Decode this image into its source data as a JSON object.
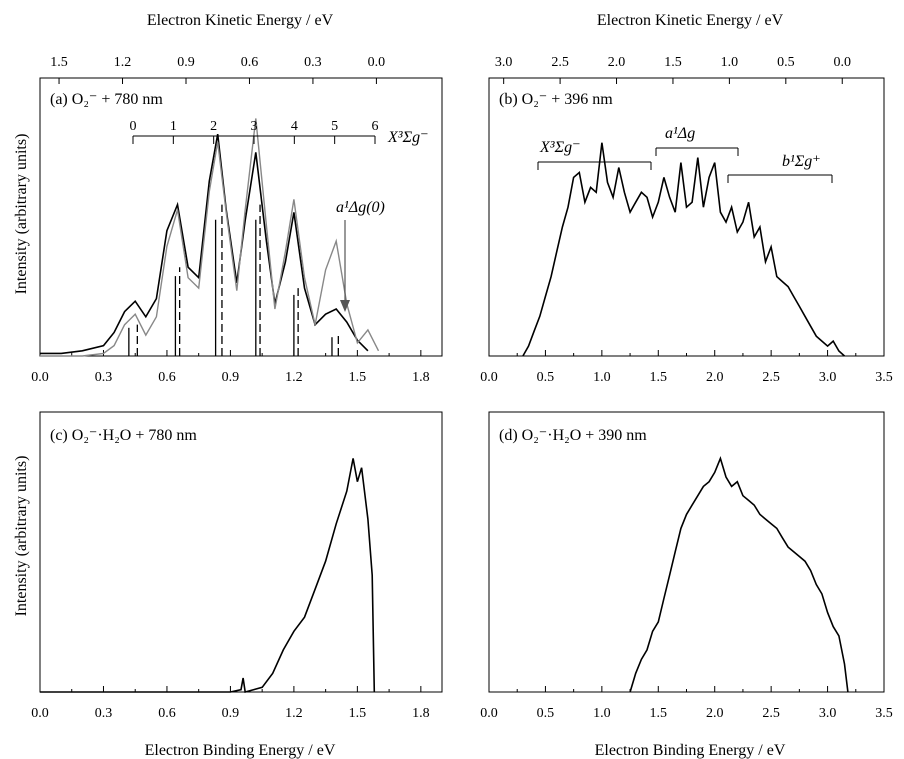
{
  "figure": {
    "top_axis_label": "Electron Kinetic Energy / eV",
    "bottom_axis_label": "Electron Binding Energy / eV",
    "y_axis_label": "Intensity (arbitrary units)"
  },
  "chart_data": [
    {
      "id": "a",
      "type": "line",
      "title": "(a)  O₂⁻ + 780 nm",
      "xlabel": "Electron Binding Energy / eV",
      "x2label": "Electron Kinetic Energy / eV",
      "ylabel": "Intensity (arbitrary units)",
      "xlim": [
        0.0,
        1.9
      ],
      "x_ticks": [
        "0.0",
        "0.3",
        "0.6",
        "0.9",
        "1.2",
        "1.5",
        "1.8"
      ],
      "x2_ticks": [
        "1.5",
        "1.2",
        "0.9",
        "0.6",
        "0.3",
        "0.0"
      ],
      "x2_tick_positions_ebe": [
        0.09,
        0.39,
        0.69,
        0.99,
        1.29,
        1.59
      ],
      "series": [
        {
          "name": "",
          "color": "#000000",
          "x": [
            0.0,
            0.1,
            0.2,
            0.3,
            0.35,
            0.4,
            0.45,
            0.5,
            0.55,
            0.6,
            0.65,
            0.7,
            0.75,
            0.8,
            0.84,
            0.88,
            0.93,
            0.97,
            1.02,
            1.07,
            1.11,
            1.16,
            1.2,
            1.25,
            1.3,
            1.35,
            1.4,
            1.45,
            1.5,
            1.55
          ],
          "y": [
            0.01,
            0.01,
            0.02,
            0.04,
            0.09,
            0.17,
            0.21,
            0.15,
            0.22,
            0.48,
            0.58,
            0.34,
            0.3,
            0.67,
            0.85,
            0.56,
            0.28,
            0.52,
            0.78,
            0.44,
            0.2,
            0.36,
            0.55,
            0.26,
            0.12,
            0.16,
            0.18,
            0.13,
            0.06,
            0.02
          ]
        },
        {
          "name": "",
          "color": "#888888",
          "x": [
            0.0,
            0.2,
            0.3,
            0.35,
            0.4,
            0.45,
            0.5,
            0.55,
            0.6,
            0.65,
            0.7,
            0.75,
            0.8,
            0.84,
            0.88,
            0.93,
            0.97,
            1.02,
            1.07,
            1.11,
            1.16,
            1.2,
            1.25,
            1.3,
            1.35,
            1.4,
            1.45,
            1.5,
            1.55,
            1.6
          ],
          "y": [
            0.0,
            0.0,
            0.01,
            0.04,
            0.12,
            0.16,
            0.08,
            0.15,
            0.42,
            0.56,
            0.3,
            0.26,
            0.63,
            0.82,
            0.55,
            0.25,
            0.56,
            0.91,
            0.5,
            0.18,
            0.4,
            0.6,
            0.3,
            0.12,
            0.33,
            0.44,
            0.2,
            0.05,
            0.1,
            0.02
          ]
        }
      ],
      "stick_spectrum": {
        "solid_x": [
          0.42,
          0.64,
          0.83,
          1.02,
          1.2,
          1.38
        ],
        "dashed_x": [
          0.46,
          0.66,
          0.86,
          1.04,
          1.22,
          1.41
        ]
      },
      "annotations": [
        {
          "state": "X³Σg⁻",
          "levels": [
            "0",
            "1",
            "2",
            "3",
            "4",
            "5",
            "6"
          ]
        },
        {
          "state": "a¹Δg(0)"
        }
      ]
    },
    {
      "id": "b",
      "type": "line",
      "title": "(b)  O₂⁻ + 396 nm",
      "xlabel": "Electron Binding Energy / eV",
      "x2label": "Electron Kinetic Energy / eV",
      "xlim": [
        0.0,
        3.5
      ],
      "x_ticks": [
        "0.0",
        "0.5",
        "1.0",
        "1.5",
        "2.0",
        "2.5",
        "3.0",
        "3.5"
      ],
      "x2_ticks": [
        "3.0",
        "2.5",
        "2.0",
        "1.5",
        "1.0",
        "0.5",
        "0.0"
      ],
      "x2_tick_positions_ebe": [
        0.13,
        0.63,
        1.13,
        1.63,
        2.13,
        2.63,
        3.13
      ],
      "series": [
        {
          "name": "",
          "color": "#000000",
          "x": [
            0.3,
            0.35,
            0.4,
            0.45,
            0.5,
            0.55,
            0.6,
            0.65,
            0.7,
            0.75,
            0.8,
            0.85,
            0.9,
            0.95,
            1.0,
            1.05,
            1.1,
            1.15,
            1.2,
            1.25,
            1.3,
            1.35,
            1.4,
            1.45,
            1.5,
            1.55,
            1.6,
            1.65,
            1.7,
            1.75,
            1.8,
            1.85,
            1.9,
            1.95,
            2.0,
            2.05,
            2.1,
            2.15,
            2.2,
            2.25,
            2.3,
            2.35,
            2.4,
            2.45,
            2.5,
            2.55,
            2.6,
            2.65,
            2.7,
            2.75,
            2.8,
            2.85,
            2.9,
            2.95,
            3.0,
            3.05,
            3.1,
            3.15
          ],
          "y": [
            0.0,
            0.04,
            0.1,
            0.16,
            0.24,
            0.32,
            0.42,
            0.52,
            0.6,
            0.72,
            0.74,
            0.62,
            0.68,
            0.66,
            0.86,
            0.7,
            0.64,
            0.76,
            0.66,
            0.58,
            0.62,
            0.66,
            0.64,
            0.56,
            0.62,
            0.72,
            0.64,
            0.58,
            0.78,
            0.6,
            0.62,
            0.8,
            0.6,
            0.72,
            0.78,
            0.58,
            0.54,
            0.6,
            0.5,
            0.54,
            0.62,
            0.48,
            0.52,
            0.38,
            0.44,
            0.32,
            0.3,
            0.28,
            0.24,
            0.2,
            0.16,
            0.12,
            0.08,
            0.06,
            0.04,
            0.06,
            0.02,
            0.0
          ]
        }
      ],
      "annotations": [
        {
          "state": "X³Σg⁻"
        },
        {
          "state": "a¹Δg"
        },
        {
          "state": "b¹Σg⁺"
        }
      ]
    },
    {
      "id": "c",
      "type": "line",
      "title": "(c)  O₂⁻·H₂O + 780 nm",
      "xlabel": "Electron Binding Energy / eV",
      "ylabel": "Intensity (arbitrary units)",
      "xlim": [
        0.0,
        1.9
      ],
      "x_ticks": [
        "0.0",
        "0.3",
        "0.6",
        "0.9",
        "1.2",
        "1.5",
        "1.8"
      ],
      "series": [
        {
          "name": "",
          "color": "#000000",
          "x": [
            0.0,
            0.5,
            0.9,
            0.95,
            0.96,
            0.97,
            1.05,
            1.1,
            1.15,
            1.2,
            1.25,
            1.3,
            1.35,
            1.4,
            1.45,
            1.48,
            1.5,
            1.52,
            1.55,
            1.57,
            1.58
          ],
          "y": [
            0.0,
            0.0,
            0.0,
            0.01,
            0.06,
            0.0,
            0.02,
            0.08,
            0.18,
            0.26,
            0.32,
            0.44,
            0.56,
            0.72,
            0.86,
            1.0,
            0.9,
            0.96,
            0.74,
            0.5,
            0.0
          ]
        }
      ]
    },
    {
      "id": "d",
      "type": "line",
      "title": "(d)  O₂⁻·H₂O + 390 nm",
      "xlabel": "Electron Binding Energy / eV",
      "xlim": [
        0.0,
        3.5
      ],
      "x_ticks": [
        "0.0",
        "0.5",
        "1.0",
        "1.5",
        "2.0",
        "2.5",
        "3.0",
        "3.5"
      ],
      "series": [
        {
          "name": "",
          "color": "#000000",
          "x": [
            1.25,
            1.3,
            1.35,
            1.4,
            1.45,
            1.5,
            1.55,
            1.6,
            1.65,
            1.7,
            1.75,
            1.8,
            1.85,
            1.9,
            1.95,
            2.0,
            2.05,
            2.1,
            2.15,
            2.2,
            2.25,
            2.3,
            2.35,
            2.4,
            2.45,
            2.5,
            2.55,
            2.6,
            2.65,
            2.7,
            2.75,
            2.8,
            2.85,
            2.9,
            2.95,
            3.0,
            3.05,
            3.1,
            3.15,
            3.18
          ],
          "y": [
            0.0,
            0.08,
            0.14,
            0.18,
            0.26,
            0.3,
            0.4,
            0.5,
            0.6,
            0.7,
            0.76,
            0.8,
            0.84,
            0.88,
            0.9,
            0.94,
            1.0,
            0.92,
            0.88,
            0.9,
            0.84,
            0.82,
            0.8,
            0.76,
            0.74,
            0.72,
            0.7,
            0.66,
            0.62,
            0.6,
            0.58,
            0.56,
            0.52,
            0.46,
            0.42,
            0.34,
            0.28,
            0.24,
            0.12,
            0.0
          ]
        }
      ]
    }
  ]
}
